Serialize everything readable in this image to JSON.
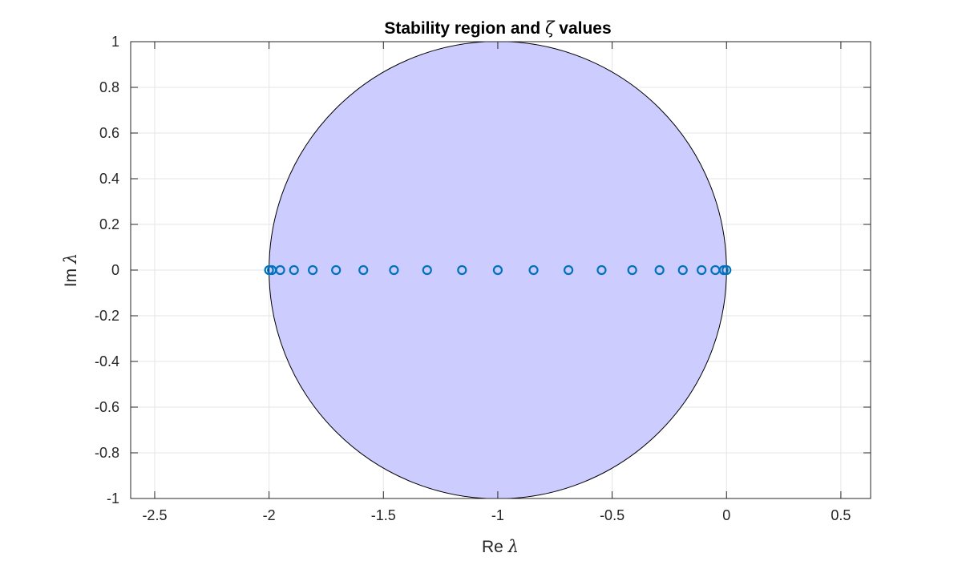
{
  "chart_data": {
    "type": "scatter",
    "title_prefix": "Stability region and ",
    "title_symbol": "ζ",
    "title_suffix": " values",
    "title": "Stability region and ζ values",
    "xlabel": "Re λ",
    "ylabel": "Im λ",
    "xlabel_text": "Re ",
    "ylabel_text": "Im ",
    "lambda_symbol": "λ",
    "xlim": [
      -2.605,
      0.63
    ],
    "ylim": [
      -1,
      1
    ],
    "xticks": [
      -2.5,
      -2,
      -1.5,
      -1,
      -0.5,
      0,
      0.5
    ],
    "xtick_labels": [
      "-2.5",
      "-2",
      "-1.5",
      "-1",
      "-0.5",
      "0",
      "0.5"
    ],
    "yticks": [
      1,
      0.8,
      0.6,
      0.4,
      0.2,
      0,
      -0.2,
      -0.4,
      -0.6,
      -0.8,
      -1
    ],
    "ytick_labels": [
      "1",
      "0.8",
      "0.6",
      "0.4",
      "0.2",
      "0",
      "-0.2",
      "-0.4",
      "-0.6",
      "-0.8",
      "-1"
    ],
    "grid": true,
    "stability_region": {
      "shape": "disk",
      "center": [
        -1,
        0
      ],
      "radius": 1,
      "fill_color": "#ccccff",
      "edge_color": "#000000"
    },
    "series": [
      {
        "name": "zeta",
        "marker": "o",
        "color": "#0072bd",
        "x": [
          0.0,
          -0.0123,
          -0.0489,
          -0.109,
          -0.191,
          -0.2929,
          -0.4122,
          -0.546,
          -0.691,
          -0.8436,
          -1.0,
          -1.1564,
          -1.309,
          -1.454,
          -1.5878,
          -1.7071,
          -1.809,
          -1.891,
          -1.9511,
          -1.9877,
          -2.0
        ],
        "y": [
          0,
          0,
          0,
          0,
          0,
          0,
          0,
          0,
          0,
          0,
          0,
          0,
          0,
          0,
          0,
          0,
          0,
          0,
          0,
          0,
          0
        ]
      }
    ]
  }
}
